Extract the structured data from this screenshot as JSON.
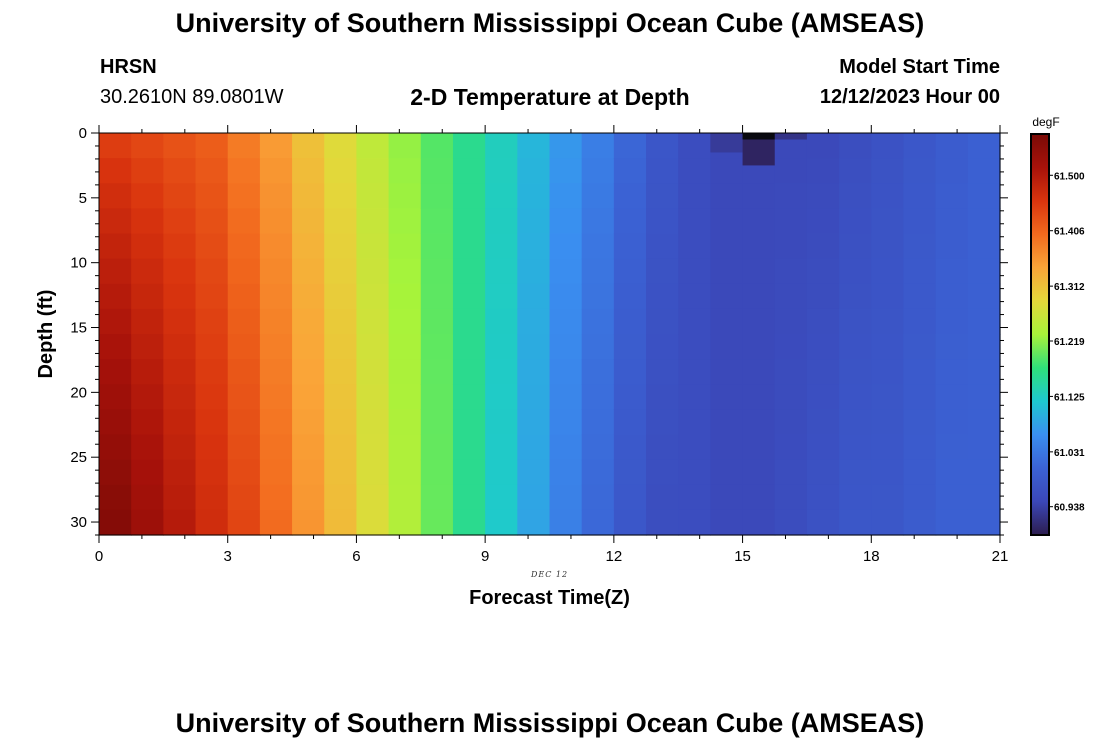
{
  "header": {
    "title": "University of Southern Mississippi Ocean Cube (AMSEAS)",
    "station": "HRSN",
    "location": "30.2610N  89.0801W",
    "plot_title": "2-D Temperature at Depth",
    "model_start_label": "Model Start Time",
    "model_start_value": "12/12/2023 Hour 00"
  },
  "footer": {
    "title": "University of Southern Mississippi Ocean Cube (AMSEAS)"
  },
  "chart_data": {
    "type": "heatmap",
    "title": "2-D Temperature at Depth",
    "xlabel": "Forecast Time(Z)",
    "ylabel": "Depth (ft)",
    "date_label": "DEC 12",
    "xlim": [
      0,
      21
    ],
    "ylim": [
      0,
      31
    ],
    "y_inverted": true,
    "x_ticks": [
      0,
      3,
      6,
      9,
      12,
      15,
      18,
      21
    ],
    "x_tick_labels": [
      "0",
      "3",
      "6",
      "9",
      "12",
      "15",
      "18",
      "21"
    ],
    "y_ticks": [
      0,
      5,
      10,
      15,
      20,
      25,
      30
    ],
    "y_tick_labels": [
      "0",
      "5",
      "10",
      "15",
      "20",
      "25",
      "30"
    ],
    "colorbar": {
      "unit": "degF",
      "range": [
        60.89,
        61.57
      ],
      "tick_values": [
        60.938,
        61.031,
        61.125,
        61.219,
        61.312,
        61.406,
        61.5
      ],
      "tick_labels": [
        "60.938",
        "61.031",
        "61.125",
        "61.219",
        "61.312",
        "61.406",
        "61.500"
      ],
      "stops": [
        "#2c1d4e",
        "#3b47b8",
        "#3b62d4",
        "#3a8ff0",
        "#1ec8d0",
        "#2fe07a",
        "#a8f33a",
        "#e3d83a",
        "#faa538",
        "#f26a1e",
        "#d9340e",
        "#a8120a",
        "#7a0a06"
      ]
    },
    "time_step_hours": 0.75,
    "surface_columns": [
      {
        "t_start": 14.25,
        "t_end": 15.0,
        "depths_ft": [
          0,
          1.5
        ],
        "temp_f": 60.93
      },
      {
        "t_start": 15.0,
        "t_end": 15.75,
        "depths_ft": [
          0,
          2.5
        ],
        "temp_f": 60.9
      },
      {
        "t_start": 15.75,
        "t_end": 16.5,
        "depths_ft": [
          0,
          0.5
        ],
        "temp_f": 60.92
      }
    ],
    "column_surface_temp_f": [
      61.44,
      61.43,
      61.42,
      61.41,
      61.38,
      61.35,
      61.31,
      61.28,
      61.25,
      61.22,
      61.19,
      61.16,
      61.13,
      61.1,
      61.07,
      61.04,
      61.01,
      60.98,
      60.96,
      60.95,
      60.95,
      60.95,
      60.95,
      60.96,
      60.97,
      60.98,
      60.99,
      61.0
    ],
    "column_bottom_temp_f": [
      61.56,
      61.53,
      61.5,
      61.47,
      61.44,
      61.4,
      61.36,
      61.32,
      61.28,
      61.24,
      61.2,
      61.16,
      61.12,
      61.08,
      61.04,
      61.01,
      60.98,
      60.96,
      60.96,
      60.95,
      60.95,
      60.96,
      60.97,
      60.98,
      60.98,
      60.99,
      61.0,
      61.0
    ]
  }
}
